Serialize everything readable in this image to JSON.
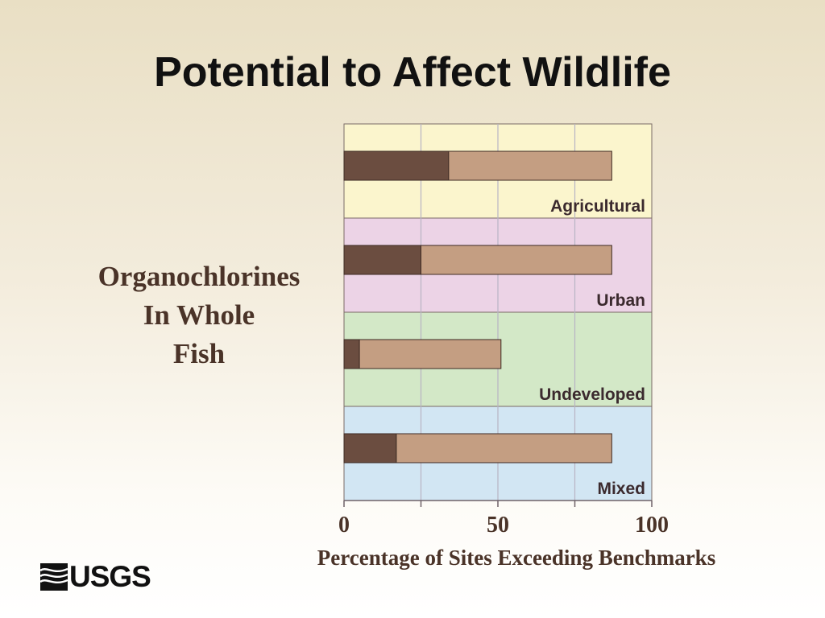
{
  "slide": {
    "title": "Potential to Affect Wildlife",
    "side_label_lines": [
      "Organochlorines",
      "In Whole",
      "Fish"
    ],
    "logo_text": "USGS"
  },
  "chart_data": {
    "type": "bar",
    "orientation": "horizontal",
    "stacked": true,
    "categories": [
      "Agricultural",
      "Urban",
      "Undeveloped",
      "Mixed"
    ],
    "series": [
      {
        "values": [
          34,
          25,
          5,
          17
        ],
        "color": "#6b4d40"
      },
      {
        "values": [
          53,
          62,
          46,
          70
        ],
        "color": "#c49e82"
      }
    ],
    "totals": [
      87,
      87,
      51,
      87
    ],
    "band_colors": [
      "#fbf5cd",
      "#ecd3e6",
      "#d3e8c7",
      "#d2e6f3"
    ],
    "x_ticks": [
      "0",
      "50",
      "100"
    ],
    "x_tick_values": [
      0,
      50,
      100
    ],
    "minor_ticks": [
      25,
      75
    ],
    "xlabel": "Percentage of Sites Exceeding Benchmarks",
    "xlim": [
      0,
      100
    ],
    "grid": true
  }
}
